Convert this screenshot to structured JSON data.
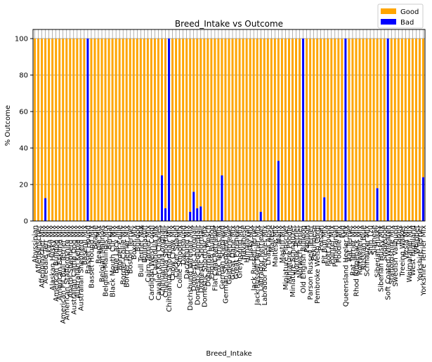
{
  "chart_data": {
    "type": "bar",
    "stacked": true,
    "title": "Breed_Intake vs Outcome",
    "xlabel": "Breed_Intake",
    "ylabel": "% Outcome",
    "categories": [
      "Abyssinian",
      "Affenpinscher",
      "Affenpinscher Mix",
      "Airedale Terr Mix",
      "Akita Mix",
      "Alaskan Husky Mix",
      "American Bulldog Mix",
      "American Eskimo Mix",
      "American Pit Bull Terrier Mix",
      "American Staffordshire Mix",
      "Anatol Shepherd Mix",
      "Australian Cattle Dog Mix",
      "Australian Kelpie Mix",
      "Australian Shepherd Mix",
      "Basenji Mix",
      "Basset Hound",
      "Basset Hound Mix",
      "Beagle",
      "Beagle Mix",
      "Belgian Malinois",
      "Belgian Malinois Mix",
      "Bengal",
      "Black Mouth Cur Mix",
      "Blue Lacy Mix",
      "Border Collie",
      "Border Collie Mix",
      "Border Terrier Mix",
      "Boston Terrier",
      "Boxer Mix",
      "Bulldog",
      "Bull Terrier Mix",
      "Bullmastiff",
      "Cairn Terrier Mix",
      "Cardigan Welsh Corgi",
      "Catahoula Mix",
      "Cavalier King Charles",
      "Chihuahua Longhair",
      "Chihuahua Shorthair",
      "Chihuahua Shorthair Mix",
      "Chow Chow Mix",
      "Cocker Spaniel",
      "Collie Smooth Mix",
      "Dachshund",
      "Dachshund Mix",
      "Dachshund Wirehair Mix",
      "Domestic Longhair",
      "Domestic Medium Hair",
      "Domestic Shorthair",
      "Domestic Shorthair Mix",
      "Doberman Pinsch",
      "English Bulldog",
      "Flat Coat Retriever",
      "Fox Terrier Mix",
      "German Shepherd",
      "German Shepherd Mix",
      "Golden Retriever",
      "Great Dane Mix",
      "Great Pyrenees",
      "Greyhound Mix",
      "Havanese",
      "Himalayan",
      "Husky Mix",
      "Jack Russell Terrier",
      "Jack Russell Terrier Mix",
      "Labrador Retriever",
      "Labrador Retriever Mix",
      "Lhasa Apso",
      "Maltese",
      "Maltese Mix",
      "Manx",
      "Mastiff Mix",
      "Miniature Pinscher",
      "Miniature Poodle",
      "Miniature Schnauzer",
      "Norfolk Terrier",
      "Norwich Terrier",
      "Old English Bulldog",
      "Papillon",
      "Parson Russell Terrier",
      "Pekingese",
      "Pembroke Welsh Corgi",
      "Persian",
      "Pit Bull Mix",
      "Plott Hound",
      "Pointer Mix",
      "Pomeranian",
      "Poodle Mix",
      "Pug",
      "Queensland Heeler Mix",
      "Rat Terrier",
      "Rat Terrier Mix",
      "Rhod Ridgeback Mix",
      "Rottweiler Mix",
      "Russian Blue",
      "Schnauzer Mix",
      "Shih Tzu",
      "Siamese",
      "Siberian Husky",
      "Siberian Husky Mix",
      "Snowshoe",
      "Soft Coated Wheaten",
      "Staffordshire Mix",
      "Swedish Vallhund",
      "Tabby",
      "Treeing Walker",
      "Vizsla Mix",
      "Weimaraner Mix",
      "West Highland",
      "Whippet",
      "Yorkshire Terrier",
      "Yorkshire Terrier Mix"
    ],
    "series": [
      {
        "name": "Good",
        "color": "#ffa500",
        "values": [
          100,
          100,
          100,
          87.5,
          100,
          100,
          100,
          100,
          100,
          100,
          100,
          100,
          100,
          100,
          100,
          0,
          100,
          100,
          100,
          100,
          100,
          100,
          100,
          100,
          100,
          100,
          100,
          100,
          100,
          100,
          100,
          100,
          100,
          100,
          100,
          100,
          75,
          93,
          0,
          100,
          100,
          100,
          100,
          100,
          95,
          84,
          93,
          92,
          100,
          100,
          100,
          100,
          100,
          75,
          100,
          100,
          100,
          100,
          100,
          100,
          100,
          100,
          100,
          100,
          95,
          100,
          100,
          100,
          100,
          67,
          100,
          100,
          100,
          100,
          100,
          100,
          0,
          100,
          100,
          100,
          100,
          100,
          87,
          100,
          100,
          100,
          100,
          100,
          0,
          100,
          100,
          100,
          100,
          100,
          100,
          100,
          100,
          82,
          100,
          100,
          0,
          100,
          100,
          100,
          100,
          100,
          100,
          100,
          100,
          100,
          76
        ]
      },
      {
        "name": "Bad",
        "color": "#0000ff",
        "values": [
          0,
          0,
          0,
          12.5,
          0,
          0,
          0,
          0,
          0,
          0,
          0,
          0,
          0,
          0,
          0,
          100,
          0,
          0,
          0,
          0,
          0,
          0,
          0,
          0,
          0,
          0,
          0,
          0,
          0,
          0,
          0,
          0,
          0,
          0,
          0,
          0,
          25,
          7,
          100,
          0,
          0,
          0,
          0,
          0,
          5,
          16,
          7,
          8,
          0,
          0,
          0,
          0,
          0,
          25,
          0,
          0,
          0,
          0,
          0,
          0,
          0,
          0,
          0,
          0,
          5,
          0,
          0,
          0,
          0,
          33,
          0,
          0,
          0,
          0,
          0,
          0,
          100,
          0,
          0,
          0,
          0,
          0,
          13,
          0,
          0,
          0,
          0,
          0,
          100,
          0,
          0,
          0,
          0,
          0,
          0,
          0,
          0,
          18,
          0,
          0,
          100,
          0,
          0,
          0,
          0,
          0,
          0,
          0,
          0,
          0,
          24
        ]
      }
    ],
    "ylim": [
      0,
      105
    ],
    "yticks": [
      0,
      20,
      40,
      60,
      80,
      100
    ],
    "grid": true,
    "legend": "upper right"
  }
}
